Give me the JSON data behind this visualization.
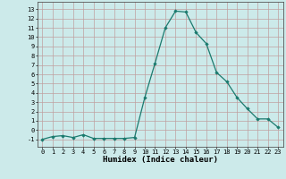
{
  "x": [
    0,
    1,
    2,
    3,
    4,
    5,
    6,
    7,
    8,
    9,
    10,
    11,
    12,
    13,
    14,
    15,
    16,
    17,
    18,
    19,
    20,
    21,
    22,
    23
  ],
  "y": [
    -1,
    -0.7,
    -0.6,
    -0.8,
    -0.5,
    -0.9,
    -0.9,
    -0.9,
    -0.9,
    -0.8,
    3.5,
    7.2,
    11.0,
    12.8,
    12.7,
    10.5,
    9.3,
    6.2,
    5.2,
    3.5,
    2.3,
    1.2,
    1.2,
    0.3
  ],
  "line_color": "#1a7a6e",
  "marker": "D",
  "marker_size": 1.8,
  "line_width": 0.9,
  "bg_color": "#cceaea",
  "grid_color": "#c0a0a0",
  "xlabel": "Humidex (Indice chaleur)",
  "xlim": [
    -0.5,
    23.5
  ],
  "ylim": [
    -1.8,
    13.8
  ],
  "xticks": [
    0,
    1,
    2,
    3,
    4,
    5,
    6,
    7,
    8,
    9,
    10,
    11,
    12,
    13,
    14,
    15,
    16,
    17,
    18,
    19,
    20,
    21,
    22,
    23
  ],
  "yticks": [
    -1,
    0,
    1,
    2,
    3,
    4,
    5,
    6,
    7,
    8,
    9,
    10,
    11,
    12,
    13
  ],
  "tick_fontsize": 5.0,
  "xlabel_fontsize": 6.5
}
